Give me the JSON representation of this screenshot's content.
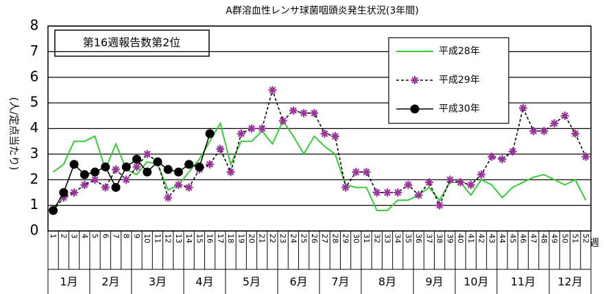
{
  "chart_data": {
    "type": "line",
    "title": "A群溶血性レンサ球菌咽頭炎発生状況(3年間)",
    "y_label": "(人/定点当たり)",
    "x_label": "週",
    "annotation": "第16週報告数第2位",
    "categories": [
      "1",
      "2",
      "3",
      "4",
      "5",
      "6",
      "7",
      "8",
      "9",
      "10",
      "11",
      "12",
      "13",
      "14",
      "15",
      "16",
      "17",
      "18",
      "19",
      "20",
      "21",
      "22",
      "23",
      "24",
      "25",
      "26",
      "27",
      "28",
      "29",
      "30",
      "31",
      "32",
      "33",
      "34",
      "35",
      "36",
      "37",
      "38",
      "39",
      "40",
      "41",
      "42",
      "43",
      "44",
      "45",
      "46",
      "47",
      "48",
      "49",
      "50",
      "51",
      "52"
    ],
    "months": [
      "1月",
      "2月",
      "3月",
      "4月",
      "5月",
      "6月",
      "7月",
      "8月",
      "9月",
      "10月",
      "11月",
      "12月"
    ],
    "ylim": [
      0,
      8
    ],
    "yticks": [
      0,
      1,
      2,
      3,
      4,
      5,
      6,
      7,
      8
    ],
    "grid": true,
    "series": [
      {
        "name": "平成28年",
        "color": "#33cc33",
        "values": [
          2.3,
          2.6,
          3.5,
          3.5,
          3.7,
          2.4,
          3.4,
          2.4,
          2.2,
          2.7,
          2.6,
          1.6,
          1.8,
          2.3,
          2.8,
          3.5,
          4.2,
          2.6,
          3.5,
          3.5,
          3.9,
          3.4,
          4.3,
          3.7,
          3.0,
          3.7,
          3.3,
          3.0,
          1.8,
          1.7,
          1.7,
          0.8,
          0.8,
          1.2,
          1.2,
          1.4,
          1.7,
          1.2,
          1.9,
          1.9,
          1.4,
          2.0,
          1.8,
          1.3,
          1.7,
          1.9,
          2.1,
          2.2,
          2.0,
          1.8,
          2.0,
          1.2
        ]
      },
      {
        "name": "平成29年",
        "color": "#993399",
        "values": [
          0.8,
          1.3,
          1.5,
          1.8,
          2.0,
          1.7,
          2.4,
          2.0,
          2.5,
          3.0,
          2.7,
          1.3,
          1.8,
          1.7,
          2.4,
          2.6,
          3.2,
          2.3,
          3.8,
          4.0,
          4.0,
          5.5,
          4.3,
          4.7,
          4.6,
          4.6,
          3.8,
          3.7,
          1.7,
          2.3,
          2.3,
          1.5,
          1.5,
          1.5,
          1.8,
          1.4,
          1.9,
          1.0,
          2.0,
          1.9,
          1.8,
          2.2,
          2.9,
          2.8,
          3.1,
          4.8,
          3.9,
          3.9,
          4.2,
          4.5,
          3.8,
          2.9
        ]
      },
      {
        "name": "平成30年",
        "color": "#000000",
        "values": [
          0.8,
          1.5,
          2.6,
          2.2,
          2.3,
          2.5,
          1.7,
          2.5,
          2.8,
          2.3,
          2.7,
          2.4,
          2.3,
          2.6,
          2.5,
          3.8,
          null,
          null,
          null,
          null,
          null,
          null,
          null,
          null,
          null,
          null,
          null,
          null,
          null,
          null,
          null,
          null,
          null,
          null,
          null,
          null,
          null,
          null,
          null,
          null,
          null,
          null,
          null,
          null,
          null,
          null,
          null,
          null,
          null,
          null,
          null,
          null
        ]
      }
    ]
  }
}
